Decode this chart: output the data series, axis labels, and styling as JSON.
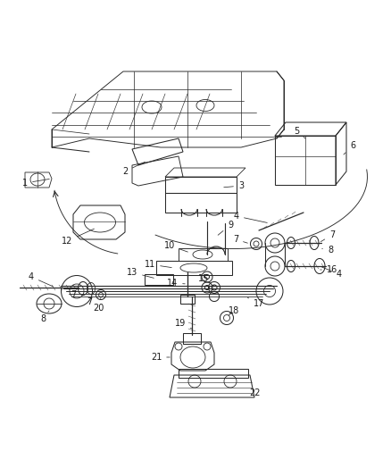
{
  "background_color": "#ffffff",
  "line_color": "#2a2a2a",
  "label_color": "#1a1a1a",
  "label_fontsize": 7.0,
  "leader_lw": 0.55,
  "part_lw": 0.75
}
